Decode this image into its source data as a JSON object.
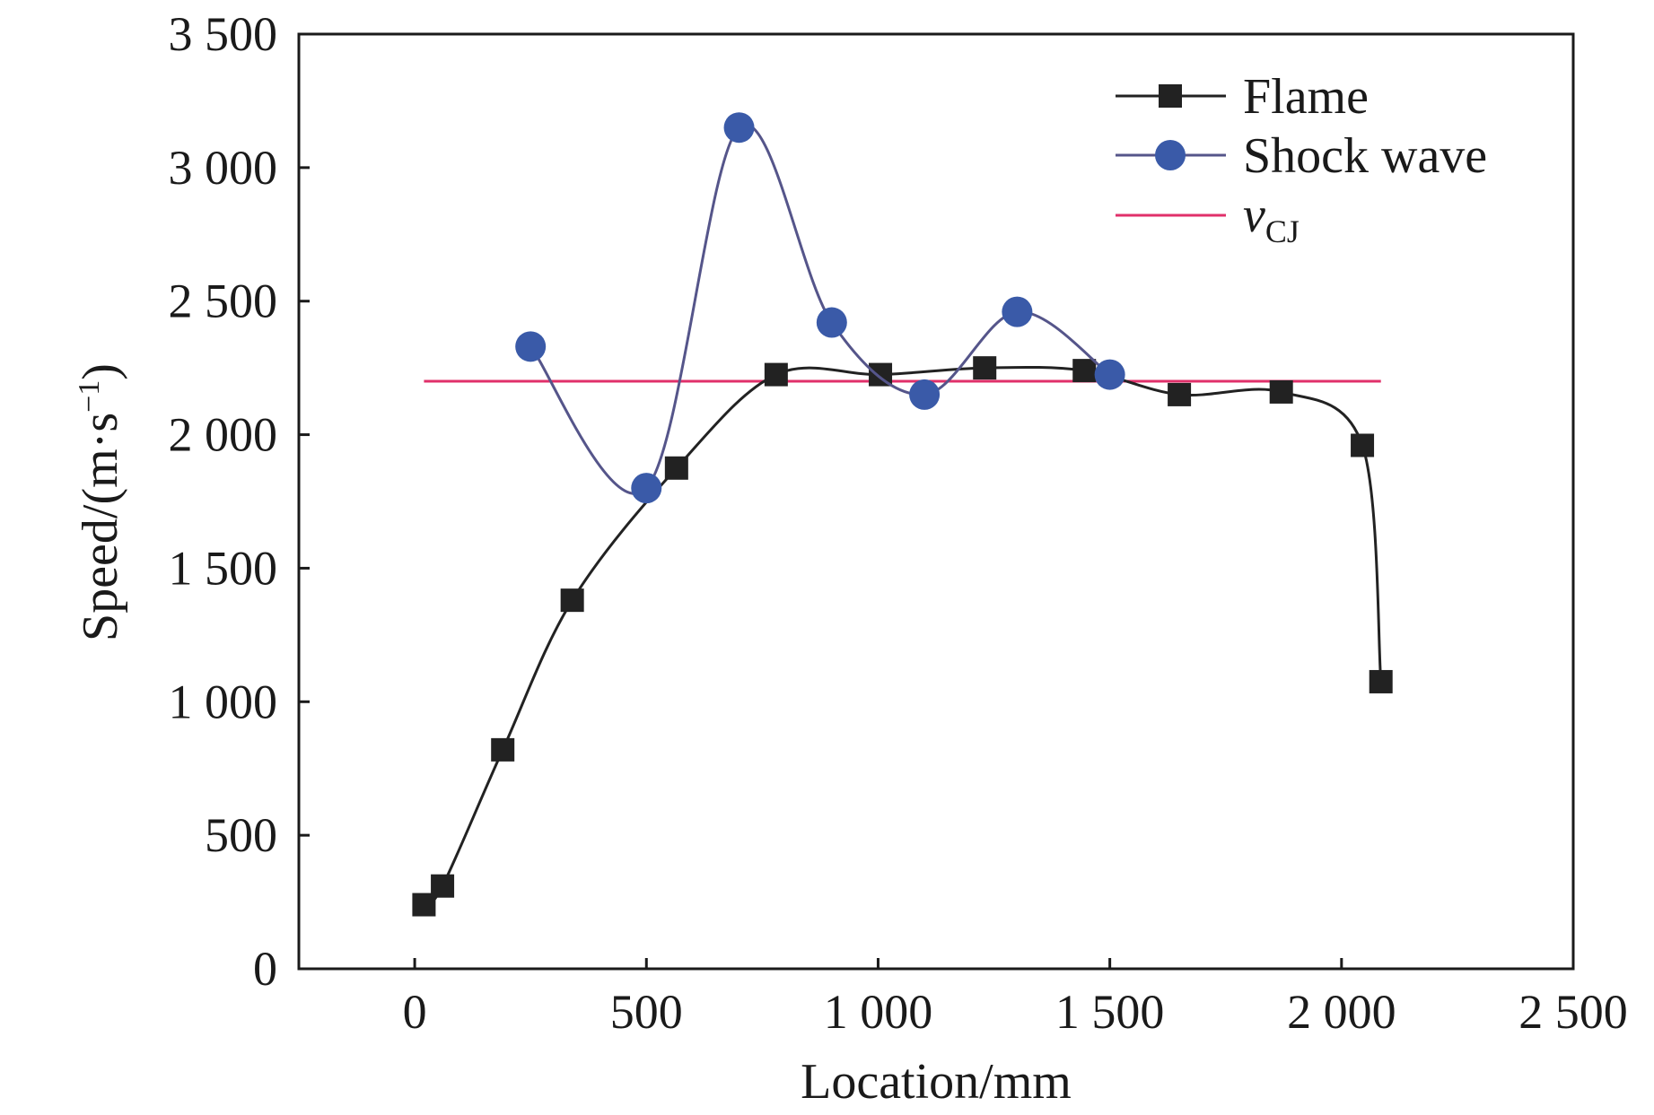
{
  "chart_data": {
    "type": "line",
    "xlabel": "Location/mm",
    "ylabel_main": "Speed/(m·s",
    "ylabel_sup": "−1",
    "ylabel_close": ")",
    "xlim": [
      -250,
      2500
    ],
    "ylim": [
      0,
      3500
    ],
    "xticks": [
      0,
      500,
      1000,
      1500,
      2000,
      2500
    ],
    "xtick_labels": [
      "0",
      "500",
      "1 000",
      "1 500",
      "2 000",
      "2 500"
    ],
    "yticks": [
      0,
      500,
      1000,
      1500,
      2000,
      2500,
      3000,
      3500
    ],
    "ytick_labels": [
      "0",
      "500",
      "1 000",
      "1 500",
      "2 000",
      "2 500",
      "3 000",
      "3 500"
    ],
    "grid": false,
    "legend_position": "top-right",
    "series": [
      {
        "name": "Flame",
        "marker": "square",
        "color": "#222222",
        "x": [
          20,
          60,
          190,
          340,
          565,
          780,
          1005,
          1230,
          1445,
          1650,
          1870,
          2045,
          2085
        ],
        "y": [
          240,
          310,
          820,
          1380,
          1875,
          2225,
          2225,
          2250,
          2240,
          2150,
          2160,
          1960,
          1075
        ]
      },
      {
        "name": "Shock wave",
        "marker": "circle",
        "color": "#3a5aa8",
        "line_color": "#55558a",
        "x": [
          250,
          500,
          700,
          900,
          1100,
          1300,
          1500
        ],
        "y": [
          2330,
          1800,
          3150,
          2420,
          2150,
          2460,
          2225
        ]
      }
    ],
    "reference_line": {
      "name_main": "v",
      "name_sub": "CJ",
      "color": "#e0306a",
      "x": [
        20,
        2085
      ],
      "y": 2200
    }
  }
}
